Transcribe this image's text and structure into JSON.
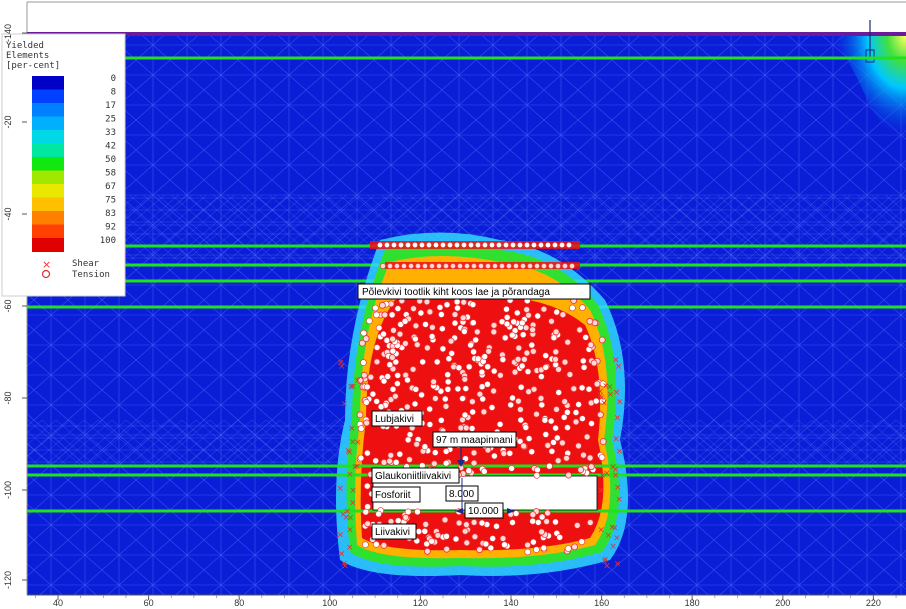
{
  "legend": {
    "title_lines": [
      "Yielded",
      "Elements",
      "[per-cent]"
    ],
    "levels": [
      "0",
      "8",
      "17",
      "25",
      "33",
      "42",
      "50",
      "58",
      "67",
      "75",
      "83",
      "92",
      "100"
    ],
    "colors": [
      "#0000c8",
      "#0040ff",
      "#0080ff",
      "#00b0ff",
      "#00d8e8",
      "#00e8a0",
      "#10e810",
      "#a0e800",
      "#e8e800",
      "#ffc000",
      "#ff8000",
      "#ff4000",
      "#e00000"
    ],
    "shear_label": "Shear",
    "tension_label": "Tension"
  },
  "annotations": {
    "polevkivi": "Põlevkivi tootlik kiht koos lae ja põrandaga",
    "lubjakivi": "Lubjakivi",
    "depth": "97 m maapinnani",
    "glaukoniit": "Glaukoniitliivakivi",
    "fosforiit": "Fosforiit",
    "dim_height": "8.000",
    "dim_width": "10.000",
    "liivakivi": "Liivakivi"
  },
  "x_axis": {
    "ticks": [
      "40",
      "60",
      "80",
      "100",
      "120",
      "140",
      "160",
      "180",
      "200",
      "220"
    ]
  },
  "y_axis": {
    "ticks": [
      "-20",
      "-40",
      "-60",
      "-80",
      "-100",
      "-120",
      "-140"
    ]
  },
  "colors": {
    "background_field": "#0a1ed8",
    "boundary_line": "#20e020",
    "yield_core": "#ee1010",
    "top_band": "#6a1a9a"
  }
}
